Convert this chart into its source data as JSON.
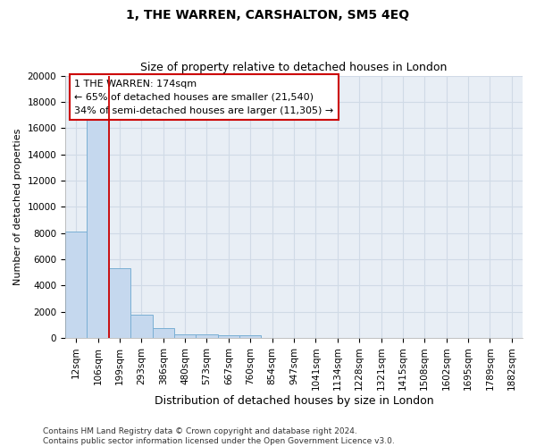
{
  "title": "1, THE WARREN, CARSHALTON, SM5 4EQ",
  "subtitle": "Size of property relative to detached houses in London",
  "xlabel": "Distribution of detached houses by size in London",
  "ylabel": "Number of detached properties",
  "bar_color": "#c5d8ee",
  "bar_edge_color": "#7aafd4",
  "bg_color": "#e8eef5",
  "grid_color": "#d0dae6",
  "categories": [
    "12sqm",
    "106sqm",
    "199sqm",
    "293sqm",
    "386sqm",
    "480sqm",
    "573sqm",
    "667sqm",
    "760sqm",
    "854sqm",
    "947sqm",
    "1041sqm",
    "1134sqm",
    "1228sqm",
    "1321sqm",
    "1415sqm",
    "1508sqm",
    "1602sqm",
    "1695sqm",
    "1789sqm",
    "1882sqm"
  ],
  "values": [
    8100,
    16600,
    5300,
    1750,
    750,
    300,
    250,
    200,
    175,
    0,
    0,
    0,
    0,
    0,
    0,
    0,
    0,
    0,
    0,
    0,
    0
  ],
  "ylim": [
    0,
    20000
  ],
  "yticks": [
    0,
    2000,
    4000,
    6000,
    8000,
    10000,
    12000,
    14000,
    16000,
    18000,
    20000
  ],
  "red_line_x": 1.5,
  "annotation_text": "1 THE WARREN: 174sqm\n← 65% of detached houses are smaller (21,540)\n34% of semi-detached houses are larger (11,305) →",
  "annotation_box_facecolor": "#ffffff",
  "annotation_box_edgecolor": "#cc0000",
  "footer_line1": "Contains HM Land Registry data © Crown copyright and database right 2024.",
  "footer_line2": "Contains public sector information licensed under the Open Government Licence v3.0.",
  "title_fontsize": 10,
  "subtitle_fontsize": 9,
  "xlabel_fontsize": 9,
  "ylabel_fontsize": 8,
  "tick_fontsize": 7.5,
  "footer_fontsize": 6.5
}
